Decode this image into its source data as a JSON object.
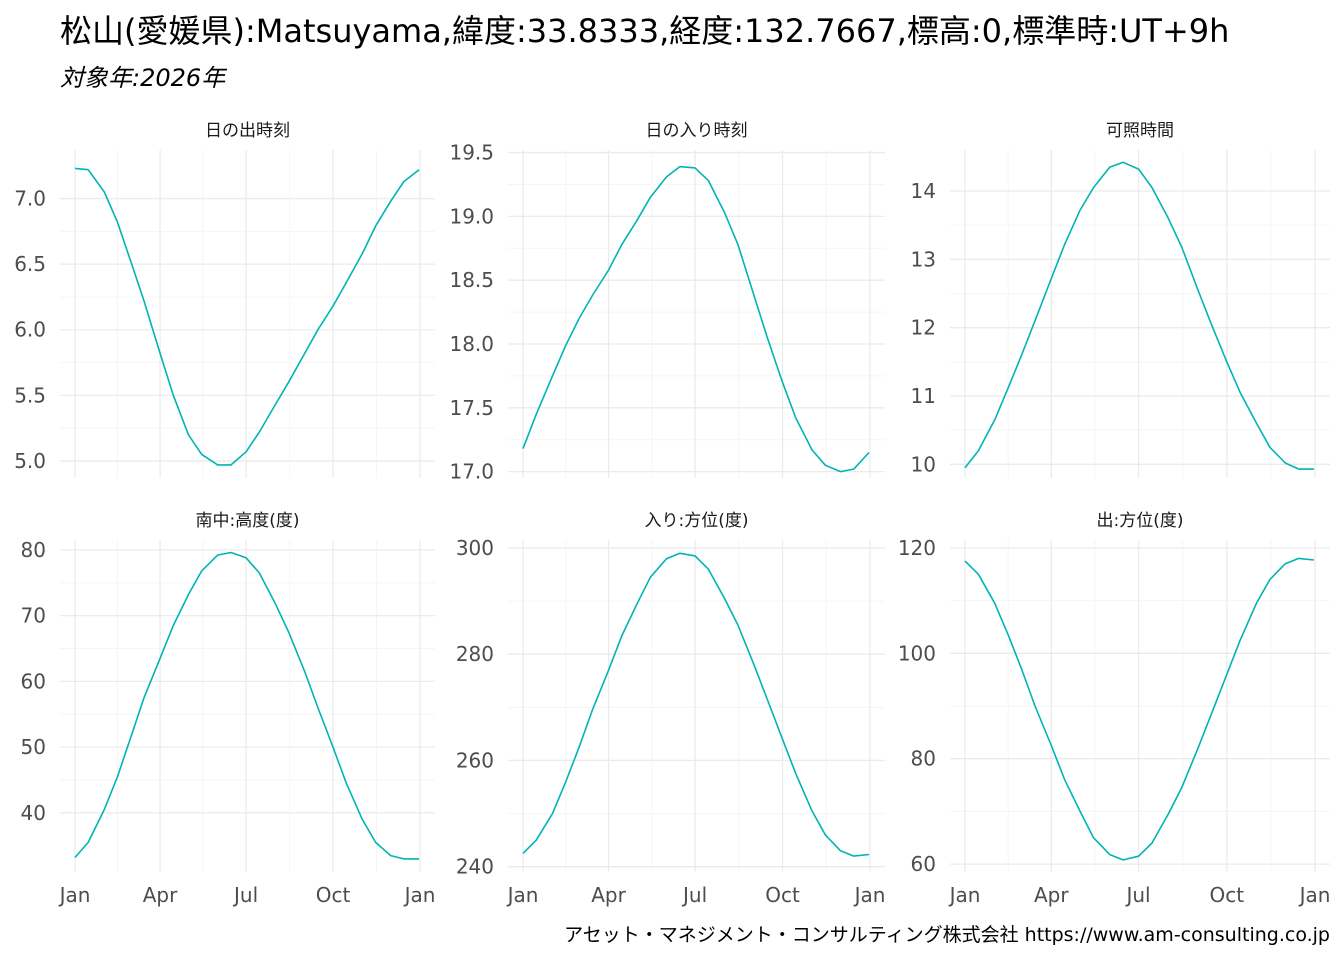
{
  "title": "松山(愛媛県):Matsuyama,緯度:33.8333,経度:132.7667,標高:0,標準時:UT+9h",
  "subtitle": "対象年:2026年",
  "caption": "アセット・マネジメント・コンサルティング株式会社 https://www.am-consulting.co.jp",
  "colors": {
    "line": "#00b4b4",
    "grid_major": "#ebebeb",
    "grid_minor": "#f5f5f5"
  },
  "chart_data": [
    {
      "type": "line",
      "title": "日の出時刻",
      "x_ticks": [
        "Jan",
        "Apr",
        "Jul",
        "Oct",
        "Jan"
      ],
      "y_ticks": [
        "5.0",
        "5.5",
        "6.0",
        "6.5",
        "7.0"
      ],
      "ylim": [
        4.87,
        7.37
      ],
      "series": [
        {
          "x": [
            "2026-01-01",
            "2026-01-15",
            "2026-02-01",
            "2026-02-15",
            "2026-03-01",
            "2026-03-15",
            "2026-04-01",
            "2026-04-15",
            "2026-05-01",
            "2026-05-15",
            "2026-06-01",
            "2026-06-15",
            "2026-07-01",
            "2026-07-15",
            "2026-08-01",
            "2026-08-15",
            "2026-09-01",
            "2026-09-15",
            "2026-10-01",
            "2026-10-15",
            "2026-11-01",
            "2026-11-15",
            "2026-12-01",
            "2026-12-15",
            "2026-12-31"
          ],
          "y": [
            7.23,
            7.22,
            7.05,
            6.82,
            6.52,
            6.22,
            5.82,
            5.5,
            5.2,
            5.05,
            4.97,
            4.97,
            5.07,
            5.22,
            5.43,
            5.6,
            5.82,
            6.0,
            6.18,
            6.36,
            6.58,
            6.79,
            6.98,
            7.13,
            7.22
          ]
        }
      ]
    },
    {
      "type": "line",
      "title": "日の入り時刻",
      "x_ticks": [
        "Jan",
        "Apr",
        "Jul",
        "Oct",
        "Jan"
      ],
      "y_ticks": [
        "17.0",
        "17.5",
        "18.0",
        "18.5",
        "19.0",
        "19.5"
      ],
      "ylim": [
        16.95,
        19.52
      ],
      "series": [
        {
          "x": [
            "2026-01-01",
            "2026-01-15",
            "2026-02-01",
            "2026-02-15",
            "2026-03-01",
            "2026-03-15",
            "2026-04-01",
            "2026-04-15",
            "2026-05-01",
            "2026-05-15",
            "2026-06-01",
            "2026-06-15",
            "2026-07-01",
            "2026-07-15",
            "2026-08-01",
            "2026-08-15",
            "2026-09-01",
            "2026-09-15",
            "2026-10-01",
            "2026-10-15",
            "2026-11-01",
            "2026-11-15",
            "2026-12-01",
            "2026-12-15",
            "2026-12-31"
          ],
          "y": [
            17.18,
            17.45,
            17.75,
            17.99,
            18.2,
            18.38,
            18.58,
            18.78,
            18.97,
            19.15,
            19.31,
            19.39,
            19.38,
            19.28,
            19.03,
            18.78,
            18.38,
            18.05,
            17.7,
            17.42,
            17.17,
            17.05,
            17.0,
            17.02,
            17.15
          ]
        }
      ]
    },
    {
      "type": "line",
      "title": "可照時間",
      "x_ticks": [
        "Jan",
        "Apr",
        "Jul",
        "Oct",
        "Jan"
      ],
      "y_ticks": [
        "10",
        "11",
        "12",
        "13",
        "14"
      ],
      "ylim": [
        9.8,
        14.6
      ],
      "series": [
        {
          "x": [
            "2026-01-01",
            "2026-01-15",
            "2026-02-01",
            "2026-02-15",
            "2026-03-01",
            "2026-03-15",
            "2026-04-01",
            "2026-04-15",
            "2026-05-01",
            "2026-05-15",
            "2026-06-01",
            "2026-06-15",
            "2026-07-01",
            "2026-07-15",
            "2026-08-01",
            "2026-08-15",
            "2026-09-01",
            "2026-09-15",
            "2026-10-01",
            "2026-10-15",
            "2026-11-01",
            "2026-11-15",
            "2026-12-01",
            "2026-12-15",
            "2026-12-31"
          ],
          "y": [
            9.95,
            10.2,
            10.65,
            11.12,
            11.6,
            12.1,
            12.72,
            13.22,
            13.72,
            14.05,
            14.35,
            14.42,
            14.32,
            14.05,
            13.6,
            13.18,
            12.55,
            12.05,
            11.5,
            11.05,
            10.6,
            10.25,
            10.02,
            9.93,
            9.93
          ]
        }
      ]
    },
    {
      "type": "line",
      "title": "南中:高度(度)",
      "x_ticks": [
        "Jan",
        "Apr",
        "Jul",
        "Oct",
        "Jan"
      ],
      "y_ticks": [
        "40",
        "50",
        "60",
        "70",
        "80"
      ],
      "ylim": [
        31,
        81.5
      ],
      "series": [
        {
          "x": [
            "2026-01-01",
            "2026-01-15",
            "2026-02-01",
            "2026-02-15",
            "2026-03-01",
            "2026-03-15",
            "2026-04-01",
            "2026-04-15",
            "2026-05-01",
            "2026-05-15",
            "2026-06-01",
            "2026-06-15",
            "2026-07-01",
            "2026-07-15",
            "2026-08-01",
            "2026-08-15",
            "2026-09-01",
            "2026-09-15",
            "2026-10-01",
            "2026-10-15",
            "2026-11-01",
            "2026-11-15",
            "2026-12-01",
            "2026-12-15",
            "2026-12-31"
          ],
          "y": [
            33.2,
            35.5,
            40.5,
            45.5,
            51.5,
            57.5,
            63.5,
            68.5,
            73.2,
            76.8,
            79.2,
            79.6,
            78.8,
            76.5,
            71.8,
            67.5,
            61.5,
            56.0,
            50.0,
            44.5,
            39.0,
            35.5,
            33.5,
            33.0,
            33.0
          ]
        }
      ]
    },
    {
      "type": "line",
      "title": "入り:方位(度)",
      "x_ticks": [
        "Jan",
        "Apr",
        "Jul",
        "Oct",
        "Jan"
      ],
      "y_ticks": [
        "240",
        "260",
        "280",
        "300"
      ],
      "ylim": [
        239,
        301.5
      ],
      "series": [
        {
          "x": [
            "2026-01-01",
            "2026-01-15",
            "2026-02-01",
            "2026-02-15",
            "2026-03-01",
            "2026-03-15",
            "2026-04-01",
            "2026-04-15",
            "2026-05-01",
            "2026-05-15",
            "2026-06-01",
            "2026-06-15",
            "2026-07-01",
            "2026-07-15",
            "2026-08-01",
            "2026-08-15",
            "2026-09-01",
            "2026-09-15",
            "2026-10-01",
            "2026-10-15",
            "2026-11-01",
            "2026-11-15",
            "2026-12-01",
            "2026-12-15",
            "2026-12-31"
          ],
          "y": [
            242.5,
            245.0,
            250.0,
            256.0,
            262.5,
            269.5,
            277.0,
            283.5,
            289.5,
            294.5,
            298.0,
            299.0,
            298.5,
            296.0,
            290.5,
            285.5,
            278.0,
            271.5,
            264.0,
            257.5,
            250.5,
            246.0,
            243.0,
            242.0,
            242.3
          ]
        }
      ]
    },
    {
      "type": "line",
      "title": "出:方位(度)",
      "x_ticks": [
        "Jan",
        "Apr",
        "Jul",
        "Oct",
        "Jan"
      ],
      "y_ticks": [
        "60",
        "80",
        "100",
        "120"
      ],
      "ylim": [
        58.5,
        121.5
      ],
      "series": [
        {
          "x": [
            "2026-01-01",
            "2026-01-15",
            "2026-02-01",
            "2026-02-15",
            "2026-03-01",
            "2026-03-15",
            "2026-04-01",
            "2026-04-15",
            "2026-05-01",
            "2026-05-15",
            "2026-06-01",
            "2026-06-15",
            "2026-07-01",
            "2026-07-15",
            "2026-08-01",
            "2026-08-15",
            "2026-09-01",
            "2026-09-15",
            "2026-10-01",
            "2026-10-15",
            "2026-11-01",
            "2026-11-15",
            "2026-12-01",
            "2026-12-15",
            "2026-12-31"
          ],
          "y": [
            117.5,
            115.0,
            109.5,
            103.5,
            97.0,
            90.0,
            82.5,
            76.0,
            70.0,
            65.0,
            61.8,
            60.8,
            61.5,
            64.0,
            69.5,
            74.5,
            82.0,
            88.5,
            96.0,
            102.5,
            109.5,
            114.0,
            117.0,
            118.0,
            117.7
          ]
        }
      ]
    }
  ]
}
